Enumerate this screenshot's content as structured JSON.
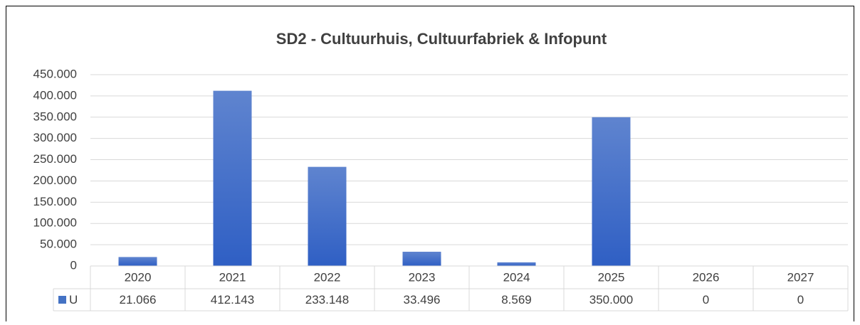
{
  "chart_data": {
    "type": "bar",
    "title": "SD2 - Cultuurhuis, Cultuurfabriek & Infopunt",
    "categories": [
      "2020",
      "2021",
      "2022",
      "2023",
      "2024",
      "2025",
      "2026",
      "2027"
    ],
    "series": [
      {
        "name": "U",
        "color": "#4472c4",
        "values": [
          21066,
          412143,
          233148,
          33496,
          8569,
          350000,
          0,
          0
        ],
        "value_labels": [
          "21.066",
          "412.143",
          "233.148",
          "33.496",
          "8.569",
          "350.000",
          "0",
          "0"
        ]
      }
    ],
    "ylim": [
      0,
      450000
    ],
    "yticks": [
      0,
      {
        "value": 50000,
        "label": "50.000"
      },
      {
        "value": 100000,
        "label": "100.000"
      },
      {
        "value": 150000,
        "label": "150.000"
      },
      {
        "value": 200000,
        "label": "200.000"
      },
      {
        "value": 250000,
        "label": "250.000"
      },
      {
        "value": 300000,
        "label": "300.000"
      },
      {
        "value": 350000,
        "label": "350.000"
      },
      {
        "value": 400000,
        "label": "400.000"
      },
      {
        "value": 450000,
        "label": "450.000"
      }
    ],
    "grid": true,
    "data_table": true
  }
}
